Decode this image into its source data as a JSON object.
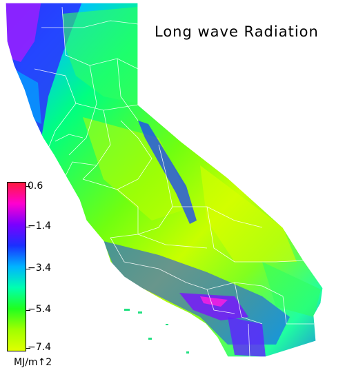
{
  "map": {
    "title": "Long wave Radiation",
    "region": "California",
    "legend": {
      "ticks": [
        "0.6",
        "−1.4",
        "−3.4",
        "−5.4",
        "−7.4"
      ],
      "unit": "MJ/m↑2",
      "colors": [
        "#ff1a40",
        "#ff00d0",
        "#7a00ff",
        "#1a30ff",
        "#00b4ff",
        "#00ffb0",
        "#20ff20",
        "#a0ff00",
        "#e0ff00"
      ]
    },
    "colors": {
      "boundary": "#ffffff",
      "background": "#ffffff"
    }
  }
}
